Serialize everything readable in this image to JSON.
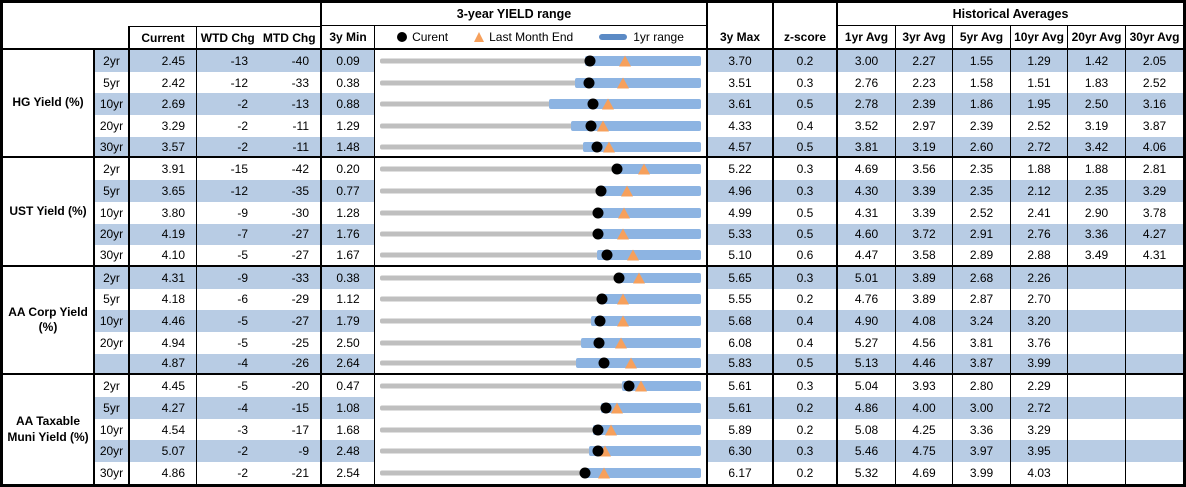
{
  "header": {
    "chart_title": "3-year YIELD range",
    "hist_title": "Historical Averages",
    "current": "Current",
    "wtd": "WTD Chg",
    "mtd": "MTD Chg",
    "min3y": "3y Min",
    "max3y": "3y Max",
    "zscore": "z-score",
    "avgs": [
      "1yr Avg",
      "3yr Avg",
      "5yr Avg",
      "10yr Avg",
      "20yr Avg",
      "30yr Avg"
    ]
  },
  "legend": {
    "current": "Curent",
    "last_month": "Last Month End",
    "range": "1yr range"
  },
  "colors": {
    "stripe": "#b8cce4",
    "range_bar": "#8db4e2",
    "track": "#bfbfbf",
    "marker_orange": "#f6a05c",
    "marker_black": "#000000",
    "legend_dash": "#5b8ac5"
  },
  "chart_data": {
    "type": "table",
    "note": "Each row also renders a bullet range chart: gray track spans min..max (3y range), blue bar spans lo1..hi1 (1yr range), black dot = current, orange triangle = last month end (lm).",
    "sections": [
      {
        "label": "HG Yield (%)",
        "rows": [
          {
            "tenor": "2yr",
            "current": "2.45",
            "wtd": "-13",
            "mtd": "-40",
            "min": "0.09",
            "max": "3.70",
            "z": "0.2",
            "avgs": [
              "3.00",
              "2.27",
              "1.55",
              "1.29",
              "1.42",
              "2.05"
            ],
            "lo1": 2.4,
            "hi1": 3.7,
            "lm": 2.85
          },
          {
            "tenor": "5yr",
            "current": "2.42",
            "wtd": "-12",
            "mtd": "-33",
            "min": "0.38",
            "max": "3.51",
            "z": "0.3",
            "avgs": [
              "2.76",
              "2.23",
              "1.58",
              "1.51",
              "1.83",
              "2.52"
            ],
            "lo1": 2.28,
            "hi1": 3.51,
            "lm": 2.75
          },
          {
            "tenor": "10yr",
            "current": "2.69",
            "wtd": "-2",
            "mtd": "-13",
            "min": "0.88",
            "max": "3.61",
            "z": "0.5",
            "avgs": [
              "2.78",
              "2.39",
              "1.86",
              "1.95",
              "2.50",
              "3.16"
            ],
            "lo1": 2.32,
            "hi1": 3.61,
            "lm": 2.82
          },
          {
            "tenor": "20yr",
            "current": "3.29",
            "wtd": "-2",
            "mtd": "-11",
            "min": "1.29",
            "max": "4.33",
            "z": "0.4",
            "avgs": [
              "3.52",
              "2.97",
              "2.39",
              "2.52",
              "3.19",
              "3.87"
            ],
            "lo1": 3.1,
            "hi1": 4.33,
            "lm": 3.4
          },
          {
            "tenor": "30yr",
            "current": "3.57",
            "wtd": "-2",
            "mtd": "-11",
            "min": "1.48",
            "max": "4.57",
            "z": "0.5",
            "avgs": [
              "3.81",
              "3.19",
              "2.60",
              "2.72",
              "3.42",
              "4.06"
            ],
            "lo1": 3.43,
            "hi1": 4.57,
            "lm": 3.68
          }
        ]
      },
      {
        "label": "UST Yield (%)",
        "rows": [
          {
            "tenor": "2yr",
            "current": "3.91",
            "wtd": "-15",
            "mtd": "-42",
            "min": "0.20",
            "max": "5.22",
            "z": "0.3",
            "avgs": [
              "4.69",
              "3.56",
              "2.35",
              "1.88",
              "1.88",
              "2.81"
            ],
            "lo1": 3.88,
            "hi1": 5.22,
            "lm": 4.33
          },
          {
            "tenor": "5yr",
            "current": "3.65",
            "wtd": "-12",
            "mtd": "-35",
            "min": "0.77",
            "max": "4.96",
            "z": "0.3",
            "avgs": [
              "4.30",
              "3.39",
              "2.35",
              "2.12",
              "2.35",
              "3.29"
            ],
            "lo1": 3.62,
            "hi1": 4.96,
            "lm": 4.0
          },
          {
            "tenor": "10yr",
            "current": "3.80",
            "wtd": "-9",
            "mtd": "-30",
            "min": "1.28",
            "max": "4.99",
            "z": "0.5",
            "avgs": [
              "4.31",
              "3.39",
              "2.52",
              "2.41",
              "2.90",
              "3.78"
            ],
            "lo1": 3.76,
            "hi1": 4.99,
            "lm": 4.1
          },
          {
            "tenor": "20yr",
            "current": "4.19",
            "wtd": "-7",
            "mtd": "-27",
            "min": "1.76",
            "max": "5.33",
            "z": "0.5",
            "avgs": [
              "4.60",
              "3.72",
              "2.91",
              "2.76",
              "3.36",
              "4.27"
            ],
            "lo1": 4.15,
            "hi1": 5.33,
            "lm": 4.46
          },
          {
            "tenor": "30yr",
            "current": "4.10",
            "wtd": "-5",
            "mtd": "-27",
            "min": "1.67",
            "max": "5.10",
            "z": "0.6",
            "avgs": [
              "4.47",
              "3.58",
              "2.89",
              "2.88",
              "3.49",
              "4.31"
            ],
            "lo1": 3.99,
            "hi1": 5.1,
            "lm": 4.37
          }
        ]
      },
      {
        "label": "AA Corp Yield (%)",
        "rows": [
          {
            "tenor": "2yr",
            "current": "4.31",
            "wtd": "-9",
            "mtd": "-33",
            "min": "0.38",
            "max": "5.65",
            "z": "0.3",
            "avgs": [
              "5.01",
              "3.89",
              "2.68",
              "2.26",
              "",
              ""
            ],
            "lo1": 4.3,
            "hi1": 5.65,
            "lm": 4.64
          },
          {
            "tenor": "5yr",
            "current": "4.18",
            "wtd": "-6",
            "mtd": "-29",
            "min": "1.12",
            "max": "5.55",
            "z": "0.2",
            "avgs": [
              "4.76",
              "3.89",
              "2.87",
              "2.70",
              "",
              ""
            ],
            "lo1": 4.15,
            "hi1": 5.55,
            "lm": 4.47
          },
          {
            "tenor": "10yr",
            "current": "4.46",
            "wtd": "-5",
            "mtd": "-27",
            "min": "1.79",
            "max": "5.68",
            "z": "0.4",
            "avgs": [
              "4.90",
              "4.08",
              "3.24",
              "3.20",
              "",
              ""
            ],
            "lo1": 4.35,
            "hi1": 5.68,
            "lm": 4.73
          },
          {
            "tenor": "20yr",
            "current": "4.94",
            "wtd": "-5",
            "mtd": "-25",
            "min": "2.50",
            "max": "6.08",
            "z": "0.4",
            "avgs": [
              "5.27",
              "4.56",
              "3.81",
              "3.76",
              "",
              ""
            ],
            "lo1": 4.74,
            "hi1": 6.08,
            "lm": 5.19
          },
          {
            "tenor": "",
            "current": "4.87",
            "wtd": "-4",
            "mtd": "-26",
            "min": "2.64",
            "max": "5.83",
            "z": "0.5",
            "avgs": [
              "5.13",
              "4.46",
              "3.87",
              "3.99",
              "",
              ""
            ],
            "lo1": 4.59,
            "hi1": 5.83,
            "lm": 5.13
          }
        ]
      },
      {
        "label": "AA Taxable Muni Yield (%)",
        "rows": [
          {
            "tenor": "2yr",
            "current": "4.45",
            "wtd": "-5",
            "mtd": "-20",
            "min": "0.47",
            "max": "5.61",
            "z": "0.3",
            "avgs": [
              "5.04",
              "3.93",
              "2.80",
              "2.29",
              "",
              ""
            ],
            "lo1": 4.35,
            "hi1": 5.61,
            "lm": 4.65
          },
          {
            "tenor": "5yr",
            "current": "4.27",
            "wtd": "-4",
            "mtd": "-15",
            "min": "1.08",
            "max": "5.61",
            "z": "0.2",
            "avgs": [
              "4.86",
              "4.00",
              "3.00",
              "2.72",
              "",
              ""
            ],
            "lo1": 4.2,
            "hi1": 5.61,
            "lm": 4.42
          },
          {
            "tenor": "10yr",
            "current": "4.54",
            "wtd": "-3",
            "mtd": "-17",
            "min": "1.68",
            "max": "5.89",
            "z": "0.2",
            "avgs": [
              "5.08",
              "4.25",
              "3.36",
              "3.29",
              "",
              ""
            ],
            "lo1": 4.47,
            "hi1": 5.89,
            "lm": 4.71
          },
          {
            "tenor": "20yr",
            "current": "5.07",
            "wtd": "-2",
            "mtd": "-9",
            "min": "2.48",
            "max": "6.30",
            "z": "0.3",
            "avgs": [
              "5.46",
              "4.75",
              "3.97",
              "3.95",
              "",
              ""
            ],
            "lo1": 4.97,
            "hi1": 6.3,
            "lm": 5.16
          },
          {
            "tenor": "30yr",
            "current": "4.86",
            "wtd": "-2",
            "mtd": "-21",
            "min": "2.54",
            "max": "6.17",
            "z": "0.2",
            "avgs": [
              "5.32",
              "4.69",
              "3.99",
              "4.03",
              "",
              ""
            ],
            "lo1": 4.84,
            "hi1": 6.17,
            "lm": 5.07
          }
        ]
      }
    ]
  }
}
